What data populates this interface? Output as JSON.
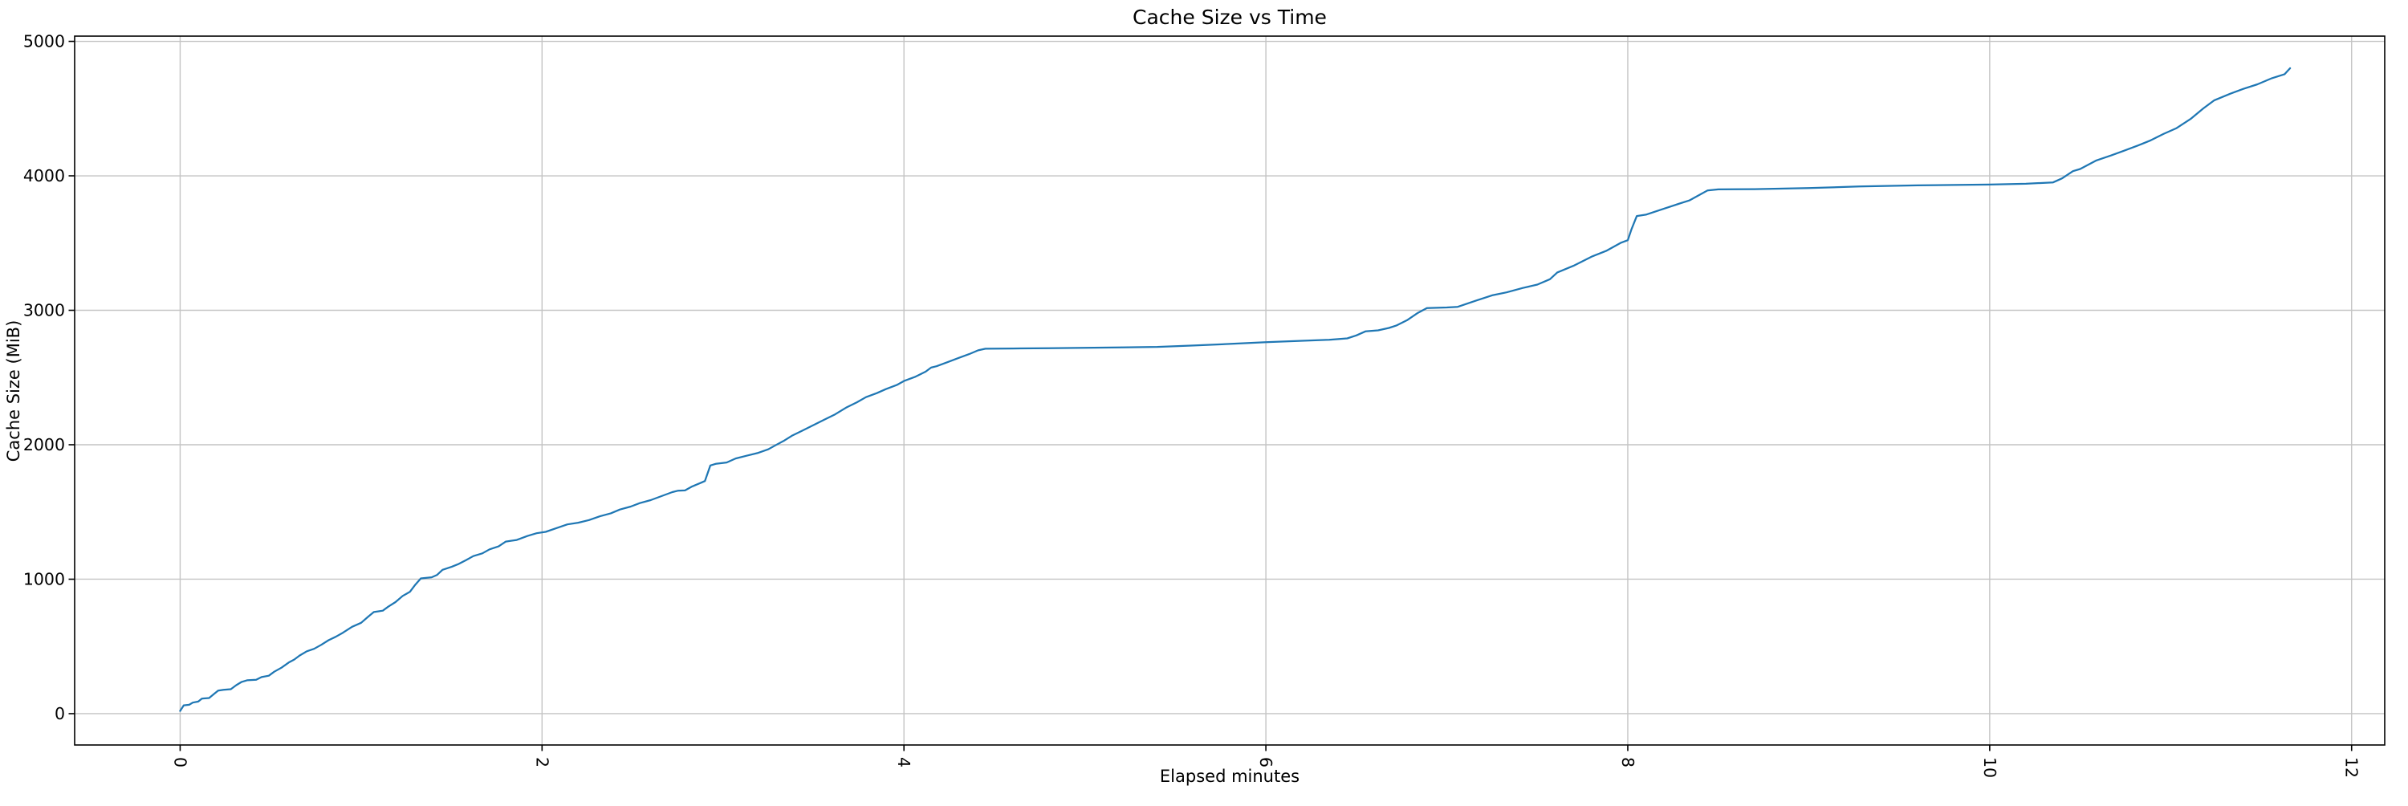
{
  "figure": {
    "background": "#ffffff"
  },
  "chart_data": {
    "type": "line",
    "title": "Cache Size vs Time",
    "xlabel": "Elapsed minutes",
    "ylabel": "Cache Size (MiB)",
    "x_ticks": [
      0,
      2,
      4,
      6,
      8,
      10,
      12
    ],
    "y_ticks": [
      0,
      1000,
      2000,
      3000,
      4000,
      5000
    ],
    "xlim": [
      -0.583,
      12.183
    ],
    "ylim": [
      -233,
      5039
    ],
    "grid": true,
    "legend_position": "none",
    "x_tick_rotation_deg": 90,
    "line_color": "#1f77b4",
    "grid_color": "#c4c4c4",
    "spine_color": "#000000",
    "series": [
      {
        "name": "cache-size",
        "points": [
          [
            0.0,
            20
          ],
          [
            0.02,
            62
          ],
          [
            0.05,
            66
          ],
          [
            0.07,
            82
          ],
          [
            0.1,
            90
          ],
          [
            0.12,
            112
          ],
          [
            0.16,
            116
          ],
          [
            0.19,
            150
          ],
          [
            0.21,
            172
          ],
          [
            0.24,
            178
          ],
          [
            0.28,
            182
          ],
          [
            0.31,
            212
          ],
          [
            0.34,
            236
          ],
          [
            0.37,
            248
          ],
          [
            0.42,
            252
          ],
          [
            0.45,
            272
          ],
          [
            0.49,
            282
          ],
          [
            0.52,
            312
          ],
          [
            0.56,
            342
          ],
          [
            0.6,
            380
          ],
          [
            0.63,
            402
          ],
          [
            0.66,
            432
          ],
          [
            0.7,
            464
          ],
          [
            0.74,
            482
          ],
          [
            0.78,
            512
          ],
          [
            0.82,
            546
          ],
          [
            0.86,
            572
          ],
          [
            0.9,
            602
          ],
          [
            0.95,
            646
          ],
          [
            1.0,
            676
          ],
          [
            1.04,
            722
          ],
          [
            1.07,
            756
          ],
          [
            1.12,
            766
          ],
          [
            1.15,
            796
          ],
          [
            1.19,
            830
          ],
          [
            1.23,
            876
          ],
          [
            1.27,
            906
          ],
          [
            1.3,
            960
          ],
          [
            1.33,
            1006
          ],
          [
            1.39,
            1014
          ],
          [
            1.42,
            1032
          ],
          [
            1.45,
            1070
          ],
          [
            1.5,
            1092
          ],
          [
            1.54,
            1114
          ],
          [
            1.58,
            1142
          ],
          [
            1.62,
            1172
          ],
          [
            1.67,
            1192
          ],
          [
            1.71,
            1222
          ],
          [
            1.76,
            1244
          ],
          [
            1.8,
            1280
          ],
          [
            1.86,
            1292
          ],
          [
            1.92,
            1322
          ],
          [
            1.97,
            1342
          ],
          [
            2.02,
            1352
          ],
          [
            2.08,
            1380
          ],
          [
            2.14,
            1408
          ],
          [
            2.2,
            1420
          ],
          [
            2.26,
            1440
          ],
          [
            2.32,
            1468
          ],
          [
            2.38,
            1490
          ],
          [
            2.43,
            1518
          ],
          [
            2.49,
            1540
          ],
          [
            2.54,
            1566
          ],
          [
            2.6,
            1588
          ],
          [
            2.66,
            1618
          ],
          [
            2.72,
            1648
          ],
          [
            2.75,
            1658
          ],
          [
            2.79,
            1660
          ],
          [
            2.83,
            1690
          ],
          [
            2.88,
            1718
          ],
          [
            2.9,
            1730
          ],
          [
            2.93,
            1846
          ],
          [
            2.96,
            1858
          ],
          [
            3.02,
            1868
          ],
          [
            3.07,
            1898
          ],
          [
            3.13,
            1918
          ],
          [
            3.19,
            1938
          ],
          [
            3.25,
            1966
          ],
          [
            3.29,
            1996
          ],
          [
            3.34,
            2032
          ],
          [
            3.38,
            2066
          ],
          [
            3.44,
            2106
          ],
          [
            3.5,
            2146
          ],
          [
            3.56,
            2186
          ],
          [
            3.62,
            2226
          ],
          [
            3.68,
            2276
          ],
          [
            3.74,
            2316
          ],
          [
            3.79,
            2354
          ],
          [
            3.85,
            2384
          ],
          [
            3.9,
            2414
          ],
          [
            3.96,
            2444
          ],
          [
            4.0,
            2474
          ],
          [
            4.06,
            2504
          ],
          [
            4.12,
            2544
          ],
          [
            4.15,
            2574
          ],
          [
            4.18,
            2584
          ],
          [
            4.24,
            2614
          ],
          [
            4.3,
            2644
          ],
          [
            4.36,
            2674
          ],
          [
            4.41,
            2702
          ],
          [
            4.45,
            2714
          ],
          [
            4.6,
            2716
          ],
          [
            4.8,
            2718
          ],
          [
            5.0,
            2721
          ],
          [
            5.2,
            2724
          ],
          [
            5.4,
            2728
          ],
          [
            5.6,
            2738
          ],
          [
            5.8,
            2750
          ],
          [
            6.0,
            2763
          ],
          [
            6.2,
            2773
          ],
          [
            6.35,
            2781
          ],
          [
            6.45,
            2791
          ],
          [
            6.5,
            2813
          ],
          [
            6.55,
            2843
          ],
          [
            6.62,
            2851
          ],
          [
            6.68,
            2869
          ],
          [
            6.72,
            2886
          ],
          [
            6.78,
            2926
          ],
          [
            6.84,
            2981
          ],
          [
            6.89,
            3016
          ],
          [
            7.0,
            3021
          ],
          [
            7.06,
            3026
          ],
          [
            7.16,
            3071
          ],
          [
            7.25,
            3111
          ],
          [
            7.33,
            3133
          ],
          [
            7.42,
            3166
          ],
          [
            7.5,
            3191
          ],
          [
            7.57,
            3231
          ],
          [
            7.61,
            3281
          ],
          [
            7.7,
            3331
          ],
          [
            7.8,
            3399
          ],
          [
            7.88,
            3441
          ],
          [
            7.96,
            3501
          ],
          [
            8.0,
            3521
          ],
          [
            8.02,
            3601
          ],
          [
            8.05,
            3701
          ],
          [
            8.1,
            3711
          ],
          [
            8.2,
            3756
          ],
          [
            8.28,
            3791
          ],
          [
            8.34,
            3817
          ],
          [
            8.4,
            3861
          ],
          [
            8.44,
            3891
          ],
          [
            8.5,
            3899
          ],
          [
            8.7,
            3901
          ],
          [
            9.0,
            3909
          ],
          [
            9.28,
            3921
          ],
          [
            9.6,
            3929
          ],
          [
            10.0,
            3935
          ],
          [
            10.2,
            3941
          ],
          [
            10.35,
            3951
          ],
          [
            10.4,
            3981
          ],
          [
            10.46,
            4035
          ],
          [
            10.5,
            4051
          ],
          [
            10.59,
            4115
          ],
          [
            10.67,
            4151
          ],
          [
            10.74,
            4186
          ],
          [
            10.82,
            4226
          ],
          [
            10.89,
            4264
          ],
          [
            10.96,
            4311
          ],
          [
            11.03,
            4353
          ],
          [
            11.11,
            4423
          ],
          [
            11.18,
            4501
          ],
          [
            11.24,
            4561
          ],
          [
            11.33,
            4611
          ],
          [
            11.4,
            4646
          ],
          [
            11.48,
            4681
          ],
          [
            11.56,
            4726
          ],
          [
            11.63,
            4756
          ],
          [
            11.66,
            4800
          ]
        ]
      }
    ]
  }
}
